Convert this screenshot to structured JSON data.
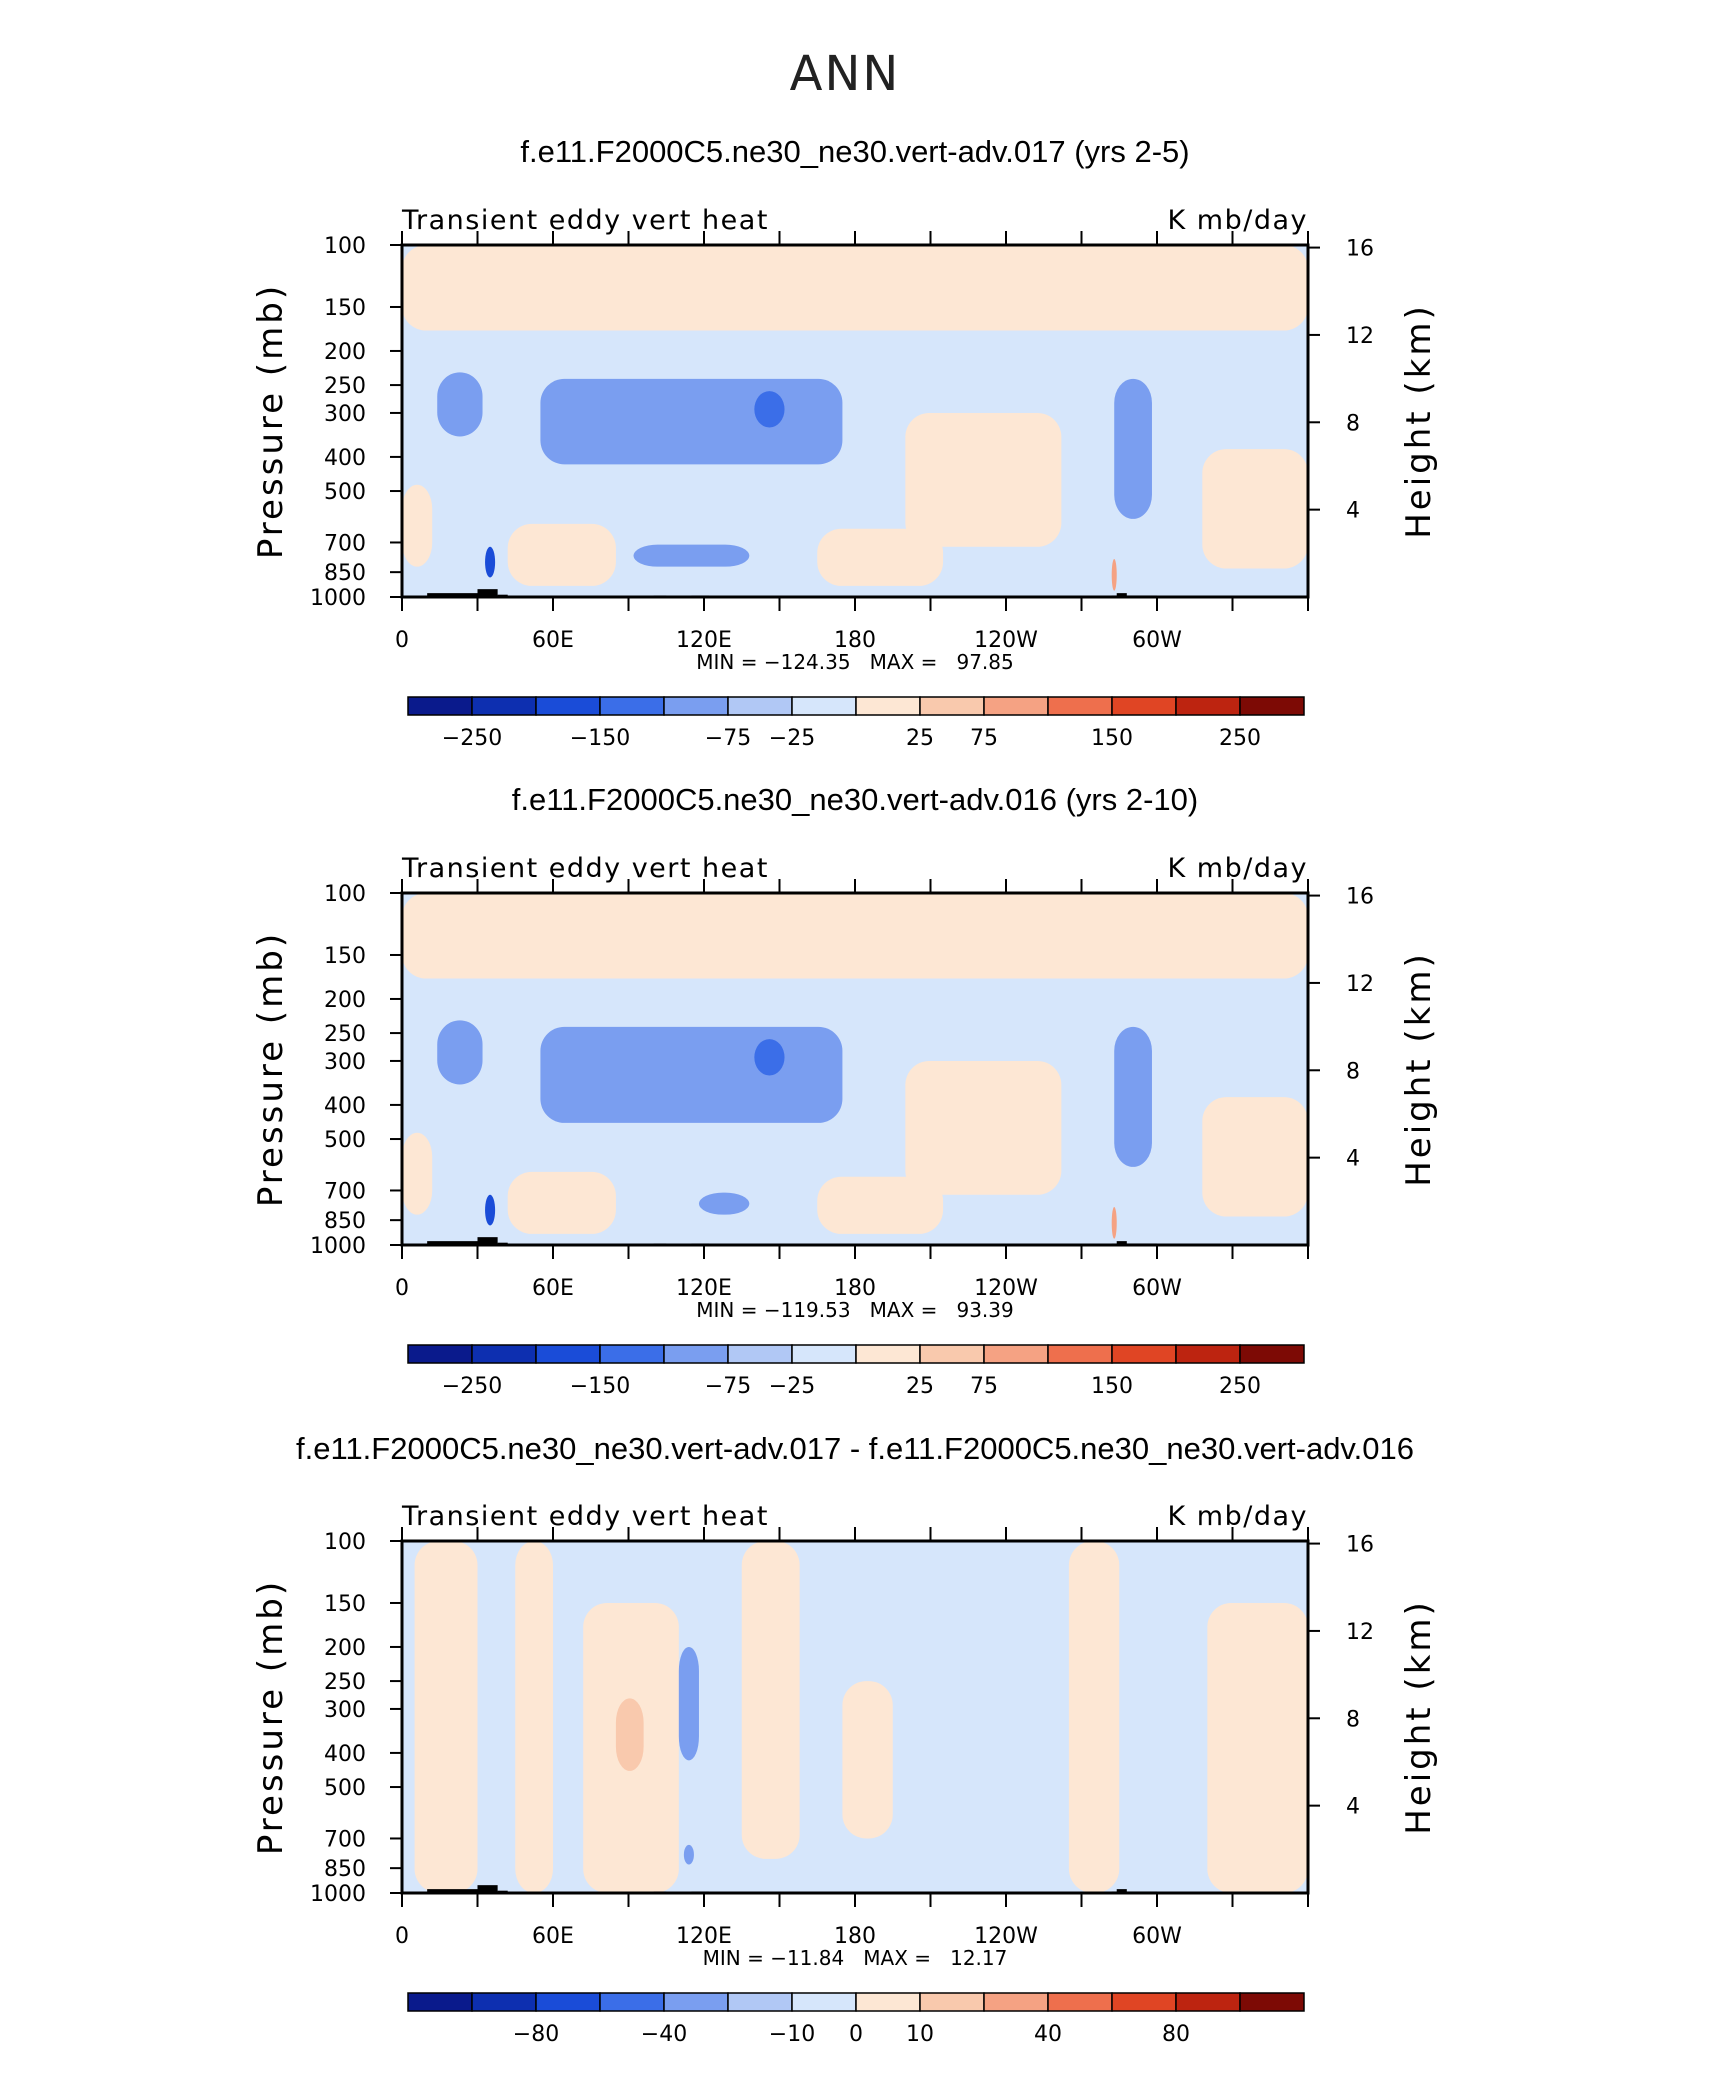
{
  "figure_title": "ANN",
  "colors": {
    "neg_scale": [
      "#0a1a8c",
      "#0d2fb0",
      "#1a4cd8",
      "#3b6ee8",
      "#7a9ef0",
      "#b1c8f5",
      "#d6e6fb"
    ],
    "pos_scale": [
      "#fde7d4",
      "#f9c9ad",
      "#f5a283",
      "#ee6f4d",
      "#e04524",
      "#bd2410",
      "#7d0a05"
    ],
    "topography": "#000000"
  },
  "chart_data": [
    {
      "type": "heatmap",
      "title": "f.e11.F2000C5.ne30_ne30.vert-adv.017 (yrs 2-5)",
      "left_subtitle": "Transient eddy vert heat",
      "right_subtitle": "K mb/day",
      "ylabel": "Pressure (mb)",
      "ylabel_right": "Height (km)",
      "yticks": [
        "100",
        "150",
        "200",
        "250",
        "300",
        "400",
        "500",
        "700",
        "850",
        "1000"
      ],
      "yticks_right": [
        "16",
        "12",
        "8",
        "4"
      ],
      "xticks": [
        "0",
        "60E",
        "120E",
        "180",
        "120W",
        "60W"
      ],
      "stats": "MIN = −124.35   MAX =   97.85",
      "min": -124.35,
      "max": 97.85,
      "colorbar_labels": [
        "−250",
        "−150",
        "−75",
        "−25",
        "25",
        "75",
        "150",
        "250"
      ],
      "field_regions": [
        {
          "kind": "pos",
          "level": 0,
          "lon": [
            0,
            360
          ],
          "p": [
            100,
            175
          ]
        },
        {
          "kind": "neg",
          "level": 1,
          "lon": [
            55,
            175
          ],
          "p": [
            240,
            420
          ]
        },
        {
          "kind": "neg",
          "level": 2,
          "lon": [
            140,
            152
          ],
          "p": [
            260,
            330
          ]
        },
        {
          "kind": "neg",
          "level": 1,
          "lon": [
            14,
            32
          ],
          "p": [
            230,
            350
          ]
        },
        {
          "kind": "neg",
          "level": 1,
          "lon": [
            283,
            298
          ],
          "p": [
            240,
            600
          ]
        },
        {
          "kind": "pos",
          "level": 0,
          "lon": [
            0,
            12
          ],
          "p": [
            480,
            820
          ]
        },
        {
          "kind": "pos",
          "level": 0,
          "lon": [
            42,
            85
          ],
          "p": [
            620,
            930
          ]
        },
        {
          "kind": "pos",
          "level": 0,
          "lon": [
            165,
            215
          ],
          "p": [
            640,
            930
          ]
        },
        {
          "kind": "pos",
          "level": 0,
          "lon": [
            200,
            262
          ],
          "p": [
            300,
            720
          ]
        },
        {
          "kind": "pos",
          "level": 0,
          "lon": [
            318,
            360
          ],
          "p": [
            380,
            830
          ]
        },
        {
          "kind": "neg",
          "level": 1,
          "lon": [
            92,
            138
          ],
          "p": [
            710,
            820
          ]
        },
        {
          "kind": "neg",
          "level": 3,
          "lon": [
            33,
            37
          ],
          "p": [
            720,
            880
          ]
        },
        {
          "kind": "pos",
          "level": 2,
          "lon": [
            282,
            284
          ],
          "p": [
            780,
            960
          ]
        }
      ]
    },
    {
      "type": "heatmap",
      "title": "f.e11.F2000C5.ne30_ne30.vert-adv.016 (yrs 2-10)",
      "left_subtitle": "Transient eddy vert heat",
      "right_subtitle": "K mb/day",
      "ylabel": "Pressure (mb)",
      "ylabel_right": "Height (km)",
      "yticks": [
        "100",
        "150",
        "200",
        "250",
        "300",
        "400",
        "500",
        "700",
        "850",
        "1000"
      ],
      "yticks_right": [
        "16",
        "12",
        "8",
        "4"
      ],
      "xticks": [
        "0",
        "60E",
        "120E",
        "180",
        "120W",
        "60W"
      ],
      "stats": "MIN = −119.53   MAX =   93.39",
      "min": -119.53,
      "max": 93.39,
      "colorbar_labels": [
        "−250",
        "−150",
        "−75",
        "−25",
        "25",
        "75",
        "150",
        "250"
      ],
      "field_regions": [
        {
          "kind": "pos",
          "level": 0,
          "lon": [
            0,
            360
          ],
          "p": [
            100,
            175
          ]
        },
        {
          "kind": "neg",
          "level": 1,
          "lon": [
            55,
            175
          ],
          "p": [
            240,
            450
          ]
        },
        {
          "kind": "neg",
          "level": 2,
          "lon": [
            140,
            152
          ],
          "p": [
            260,
            330
          ]
        },
        {
          "kind": "neg",
          "level": 1,
          "lon": [
            14,
            32
          ],
          "p": [
            230,
            350
          ]
        },
        {
          "kind": "neg",
          "level": 1,
          "lon": [
            283,
            298
          ],
          "p": [
            240,
            600
          ]
        },
        {
          "kind": "pos",
          "level": 0,
          "lon": [
            0,
            12
          ],
          "p": [
            480,
            820
          ]
        },
        {
          "kind": "pos",
          "level": 0,
          "lon": [
            42,
            85
          ],
          "p": [
            620,
            930
          ]
        },
        {
          "kind": "pos",
          "level": 0,
          "lon": [
            165,
            215
          ],
          "p": [
            640,
            930
          ]
        },
        {
          "kind": "pos",
          "level": 0,
          "lon": [
            200,
            262
          ],
          "p": [
            300,
            720
          ]
        },
        {
          "kind": "pos",
          "level": 0,
          "lon": [
            318,
            360
          ],
          "p": [
            380,
            830
          ]
        },
        {
          "kind": "neg",
          "level": 1,
          "lon": [
            118,
            138
          ],
          "p": [
            710,
            820
          ]
        },
        {
          "kind": "neg",
          "level": 3,
          "lon": [
            33,
            37
          ],
          "p": [
            720,
            880
          ]
        },
        {
          "kind": "pos",
          "level": 2,
          "lon": [
            282,
            284
          ],
          "p": [
            780,
            960
          ]
        }
      ]
    },
    {
      "type": "heatmap",
      "title": "f.e11.F2000C5.ne30_ne30.vert-adv.017 - f.e11.F2000C5.ne30_ne30.vert-adv.016",
      "left_subtitle": "Transient eddy vert heat",
      "right_subtitle": "K mb/day",
      "ylabel": "Pressure (mb)",
      "ylabel_right": "Height (km)",
      "yticks": [
        "100",
        "150",
        "200",
        "250",
        "300",
        "400",
        "500",
        "700",
        "850",
        "1000"
      ],
      "yticks_right": [
        "16",
        "12",
        "8",
        "4"
      ],
      "xticks": [
        "0",
        "60E",
        "120E",
        "180",
        "120W",
        "60W"
      ],
      "stats": "MIN = −11.84   MAX =   12.17",
      "min": -11.84,
      "max": 12.17,
      "colorbar_labels": [
        "−80",
        "−40",
        "−10",
        "0",
        "10",
        "40",
        "80"
      ],
      "field_regions": [
        {
          "kind": "pos",
          "level": 0,
          "lon": [
            5,
            30
          ],
          "p": [
            100,
            1000
          ]
        },
        {
          "kind": "pos",
          "level": 0,
          "lon": [
            45,
            60
          ],
          "p": [
            100,
            1000
          ]
        },
        {
          "kind": "pos",
          "level": 0,
          "lon": [
            72,
            110
          ],
          "p": [
            150,
            1000
          ]
        },
        {
          "kind": "pos",
          "level": 1,
          "lon": [
            85,
            96
          ],
          "p": [
            280,
            450
          ]
        },
        {
          "kind": "pos",
          "level": 0,
          "lon": [
            135,
            158
          ],
          "p": [
            100,
            800
          ]
        },
        {
          "kind": "pos",
          "level": 0,
          "lon": [
            175,
            195
          ],
          "p": [
            250,
            700
          ]
        },
        {
          "kind": "pos",
          "level": 0,
          "lon": [
            265,
            285
          ],
          "p": [
            100,
            1000
          ]
        },
        {
          "kind": "pos",
          "level": 0,
          "lon": [
            320,
            360
          ],
          "p": [
            150,
            1000
          ]
        },
        {
          "kind": "neg",
          "level": 1,
          "lon": [
            110,
            118
          ],
          "p": [
            200,
            420
          ]
        },
        {
          "kind": "neg",
          "level": 1,
          "lon": [
            112,
            116
          ],
          "p": [
            730,
            830
          ]
        }
      ]
    }
  ]
}
